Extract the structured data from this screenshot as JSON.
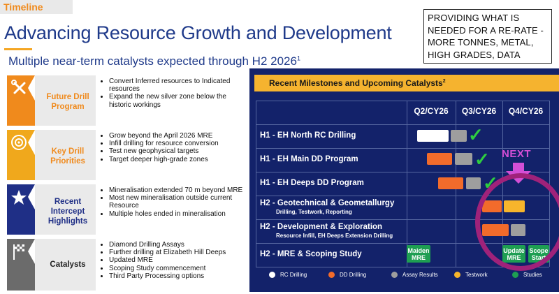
{
  "header": {
    "tag": "Timeline",
    "title": "Advancing Resource Growth and Development",
    "subtitle": "Multiple near-term catalysts expected through H2 2026",
    "subtitle_sup": "1"
  },
  "callout": {
    "lines": [
      "PROVIDING WHAT IS",
      "NEEDED FOR A RE-RATE -",
      "MORE TONNES, METAL,",
      "HIGH GRADES, DATA"
    ]
  },
  "catalyst_rows": [
    {
      "label": "Future Drill Program",
      "icon": "tools-icon",
      "color": "#f08a1c",
      "bullets": [
        "Convert Inferred resources to Indicated resources",
        "Expand the new silver zone below the historic workings"
      ]
    },
    {
      "label": "Key Drill Priorities",
      "icon": "target-icon",
      "color": "#f0a81c",
      "bullets": [
        "Grow beyond the April 2026 MRE",
        "Infill drilling for resource conversion",
        "Test new geophysical targets",
        "Target deeper high-grade zones"
      ]
    },
    {
      "label": "Recent Intercept Highlights",
      "icon": "star-icon",
      "color": "#1f2f86",
      "bullets": [
        "Mineralisation extended 70 m beyond MRE",
        "Most new mineralisation outside current Resource",
        "Multiple holes ended in mineralisation"
      ]
    },
    {
      "label": "Catalysts",
      "icon": "flag-icon",
      "color": "#222222",
      "bullets": [
        "Diamond Drilling Assays",
        "Further drilling at Elizabeth Hill Deeps",
        "Updated MRE",
        "Scoping Study commencement",
        "Third Party Processing options"
      ]
    }
  ],
  "milestones": {
    "title": "Recent Milestones and Upcoming Catalysts",
    "title_sup": "2",
    "columns": [
      "Q2/CY26",
      "Q3/CY26",
      "Q4/CY26"
    ],
    "rows": [
      {
        "label": "H1  - EH North RC Drilling",
        "sub": ""
      },
      {
        "label": "H1  - EH Main DD Program",
        "sub": ""
      },
      {
        "label": "H1  - EH Deeps DD Program",
        "sub": ""
      },
      {
        "label": "H2  - Geotechnical & Geometallurgy",
        "sub": "Drilling, Testwork, Reporting"
      },
      {
        "label": "H2  - Development & Exploration",
        "sub": "Resource Infill, EH Deeps Extension Drilling"
      },
      {
        "label": "H2  - MRE & Scoping Study",
        "sub": ""
      }
    ],
    "boxes": {
      "maiden": "Maiden MRE",
      "update": "Update MRE",
      "scope": "Scope Start"
    },
    "next_label": "NEXT",
    "legend": [
      {
        "label": "RC Drilling",
        "color": "#ffffff"
      },
      {
        "label": "DD Drilling",
        "color": "#f26b2b"
      },
      {
        "label": "Assay Results",
        "color": "#9e9e9e"
      },
      {
        "label": "Testwork",
        "color": "#f7b52c"
      },
      {
        "label": "Studies",
        "color": "#1e9e52"
      }
    ]
  },
  "colors": {
    "navy": "#13226a",
    "gold": "#f5b32f",
    "title_blue": "#1f3a8a",
    "highlight_ring": "#a0227a",
    "next": "#d34fd6"
  }
}
